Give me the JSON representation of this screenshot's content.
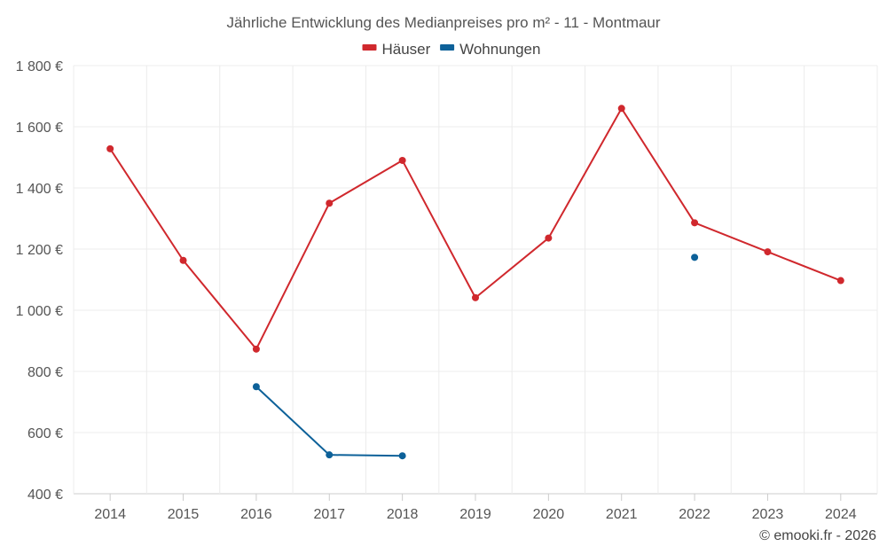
{
  "chart_data": {
    "type": "line",
    "title": "Jährliche Entwicklung des Medianpreises pro m² - 11 - Montmaur",
    "categories": [
      "2014",
      "2015",
      "2016",
      "2017",
      "2018",
      "2019",
      "2020",
      "2021",
      "2022",
      "2023",
      "2024"
    ],
    "series": [
      {
        "name": "Häuser",
        "color": "#d0282d",
        "values": [
          1528,
          1163,
          873,
          1350,
          1490,
          1041,
          1236,
          1660,
          1286,
          1191,
          1097
        ]
      },
      {
        "name": "Wohnungen",
        "color": "#0d6199",
        "values": [
          null,
          null,
          750,
          527,
          524,
          null,
          null,
          null,
          1173,
          null,
          null
        ]
      }
    ],
    "yticks": [
      400,
      600,
      800,
      1000,
      1200,
      1400,
      1600,
      1800
    ],
    "ytick_labels": [
      "400 €",
      "600 €",
      "800 €",
      "1 000 €",
      "1 200 €",
      "1 400 €",
      "1 600 €",
      "1 800 €"
    ],
    "ylim": [
      400,
      1800
    ],
    "xlabel": "",
    "ylabel": "",
    "legend_position": "top-center",
    "grid": true
  },
  "credit": "© emooki.fr - 2026"
}
